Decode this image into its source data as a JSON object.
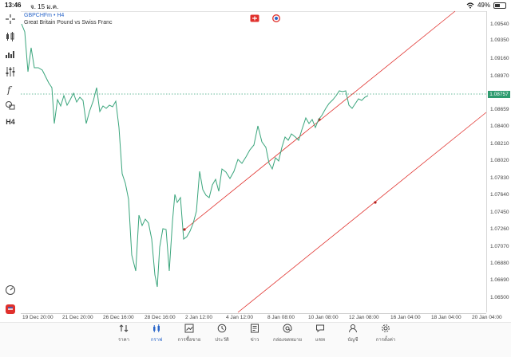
{
  "status": {
    "time": "13:46",
    "date": "จ. 15 ม.ค.",
    "battery": "49%"
  },
  "chart": {
    "symbol": "GBPCHFm • H4",
    "description": "Great Britain Pound vs Swiss Franc",
    "current_price": "1.08757"
  },
  "price_ticks": [
    "1.09540",
    "1.09350",
    "1.09160",
    "1.08970",
    "1.08659",
    "1.08400",
    "1.08210",
    "1.08020",
    "1.07830",
    "1.07640",
    "1.07450",
    "1.07260",
    "1.07070",
    "1.06880",
    "1.06690",
    "1.06500"
  ],
  "time_ticks": [
    "19 Dec 20:00",
    "21 Dec 20:00",
    "26 Dec 16:00",
    "28 Dec 16:00",
    "2 Jan 12:00",
    "4 Jan 12:00",
    "8 Jan 08:00",
    "10 Jan 08:00",
    "12 Jan 08:00",
    "16 Jan 04:00",
    "18 Jan 04:00",
    "20 Jan 04:00"
  ],
  "tabs": [
    "ราคา",
    "กราฟ",
    "การซื้อขาย",
    "ประวัติ",
    "ข่าว",
    "กล่องจดหมาย",
    "แชท",
    "บัญชี",
    "การตั้งค่า"
  ],
  "colors": {
    "line": "#3aa57c",
    "trend": "#e0302c",
    "accent": "#2a66c9"
  }
}
